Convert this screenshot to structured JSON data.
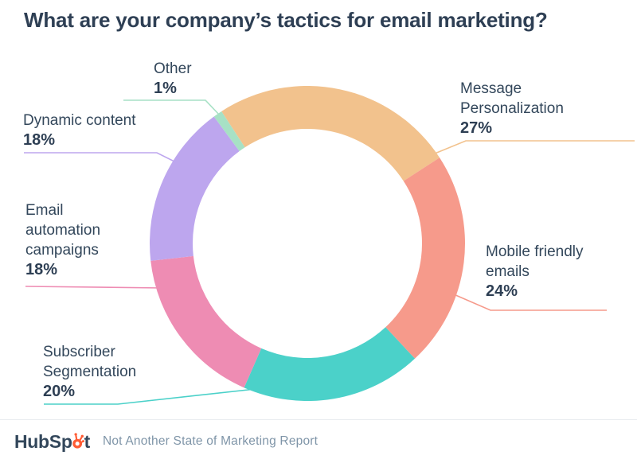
{
  "chart_data": {
    "type": "pie",
    "subtype": "donut",
    "title": "What are your company’s tactics for email marketing?",
    "unit": "%",
    "legend_position": "callout-labels-around-donut",
    "start_angle_deg": -33,
    "donut_hole_ratio": 0.727,
    "slices": [
      {
        "label": "Message Personalization",
        "value": 27,
        "pct_label": "27%",
        "color": "#f2c28d"
      },
      {
        "label": "Mobile friendly emails",
        "value": 24,
        "pct_label": "24%",
        "color": "#f69a8b"
      },
      {
        "label": "Subscriber Segmentation",
        "value": 20,
        "pct_label": "20%",
        "color": "#4bd1c9"
      },
      {
        "label": "Email automation campaigns",
        "value": 18,
        "pct_label": "18%",
        "color": "#ee8cb3"
      },
      {
        "label": "Dynamic content",
        "value": 18,
        "pct_label": "18%",
        "color": "#bda6ee"
      },
      {
        "label": "Other",
        "value": 1,
        "pct_label": "1%",
        "color": "#a7e1c5"
      }
    ]
  },
  "footer": {
    "brand_full": "HubSpot",
    "brand_prefix": "HubSp",
    "brand_suffix": "t",
    "caption": "Not Another State of Marketing Report"
  },
  "colors": {
    "title_text": "#2e3f54",
    "label_text": "#33475b",
    "brand_text": "#33475b",
    "brand_accent": "#ff5c35",
    "caption_text": "#7f95a8",
    "divider": "#e9edf0",
    "background": "#ffffff"
  }
}
